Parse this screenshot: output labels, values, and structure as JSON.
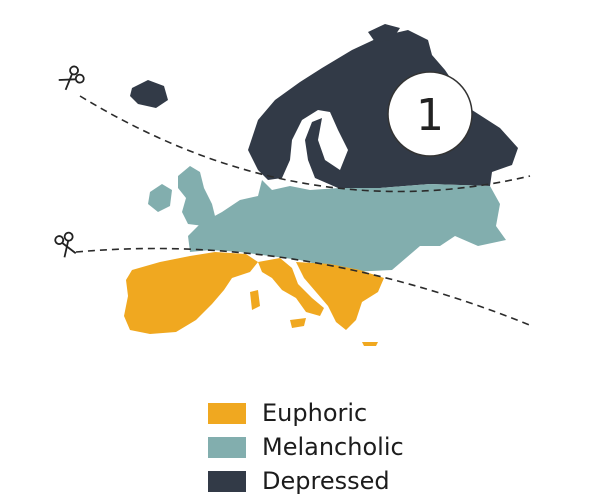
{
  "map": {
    "badge_number": "1",
    "regions": {
      "north": {
        "legend_ref": "depressed",
        "color": "#323a47"
      },
      "central": {
        "legend_ref": "melancholic",
        "color": "#82aeae"
      },
      "south": {
        "legend_ref": "euphoric",
        "color": "#f0a820"
      }
    },
    "cut_lines": {
      "style": "dashed",
      "icon": "scissors-icon"
    }
  },
  "legend": {
    "items": [
      {
        "key": "euphoric",
        "label": "Euphoric",
        "color": "#f0a820"
      },
      {
        "key": "melancholic",
        "label": "Melancholic",
        "color": "#82aeae"
      },
      {
        "key": "depressed",
        "label": "Depressed",
        "color": "#323a47"
      }
    ]
  }
}
